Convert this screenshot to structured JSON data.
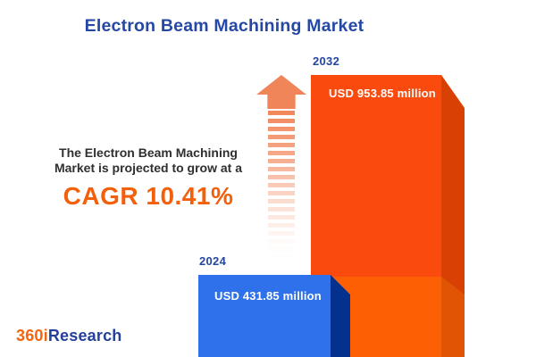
{
  "title": "Electron Beam Machining Market",
  "description": {
    "line1": "The Electron Beam Machining",
    "line2": "Market is projected to grow at a",
    "cagr": "CAGR 10.41%"
  },
  "bars": [
    {
      "year": "2024",
      "value": 431.85,
      "value_label": "USD 431.85 million",
      "front_color": "#2F71EA",
      "side_color": "#05318E"
    },
    {
      "year": "2032",
      "value": 953.85,
      "value_label": "USD 953.85 million",
      "front_color_top": "#FB4A0E",
      "front_color_bottom": "#FC5F04",
      "side_color_top": "#D84103",
      "side_color_bottom": "#E05504"
    }
  ],
  "logo": {
    "prefix": "360i",
    "suffix": "Research"
  },
  "colors": {
    "title_navy": "#2548A6",
    "year_label_navy": "#24479F",
    "cagr_orange": "#F2600C",
    "body_text": "#2F2F2F",
    "arrow_salmon": "#F1855A",
    "logo_orange": "#F4650E",
    "logo_navy": "#24409B",
    "background": "#FFFFFF"
  },
  "chart_data": {
    "type": "bar",
    "title": "Electron Beam Machining Market",
    "categories": [
      "2024",
      "2032"
    ],
    "values": [
      431.85,
      953.85
    ],
    "unit": "USD million",
    "value_labels": [
      "USD 431.85 million",
      "USD 953.85 million"
    ],
    "cagr_percent": 10.41,
    "annotations": [
      "The Electron Beam Machining Market is projected to grow at a CAGR 10.41%"
    ],
    "bar_colors": [
      "#2F71EA",
      "#FB4A0E"
    ],
    "style": "3d-extruded-bars",
    "legend": "none",
    "axes": "none"
  }
}
